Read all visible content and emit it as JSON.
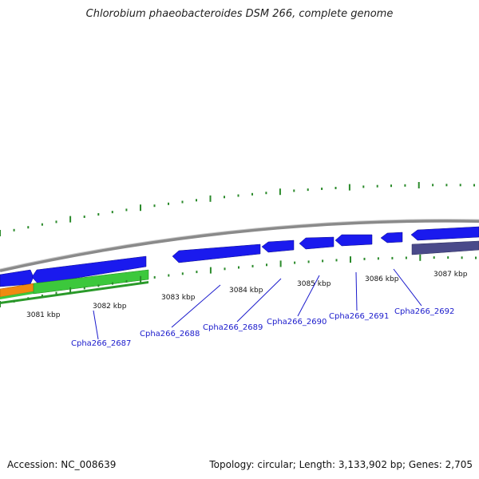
{
  "title": "Chlorobium phaeobacteroides DSM 266, complete genome",
  "footer": {
    "accession": "Accession: NC_008639",
    "summary": "Topology: circular; Length: 3,133,902 bp; Genes: 2,705"
  },
  "colors": {
    "backbone": "#8a8a8a",
    "gene_blue": "#1a1aee",
    "gene_green": "#3cc83c",
    "gene_orange": "#f08a10",
    "gene_slate": "#4a4a8a",
    "tick_green": "#2a8a2a",
    "label_blue": "#1a1acc"
  },
  "scale_labels": [
    "3081 kbp",
    "3082 kbp",
    "3083 kbp",
    "3084 kbp",
    "3085 kbp",
    "3086 kbp",
    "3087 kbp"
  ],
  "gene_labels": [
    "Cpha266_2687",
    "Cpha266_2688",
    "Cpha266_2689",
    "Cpha266_2690",
    "Cpha266_2691",
    "Cpha266_2692"
  ]
}
